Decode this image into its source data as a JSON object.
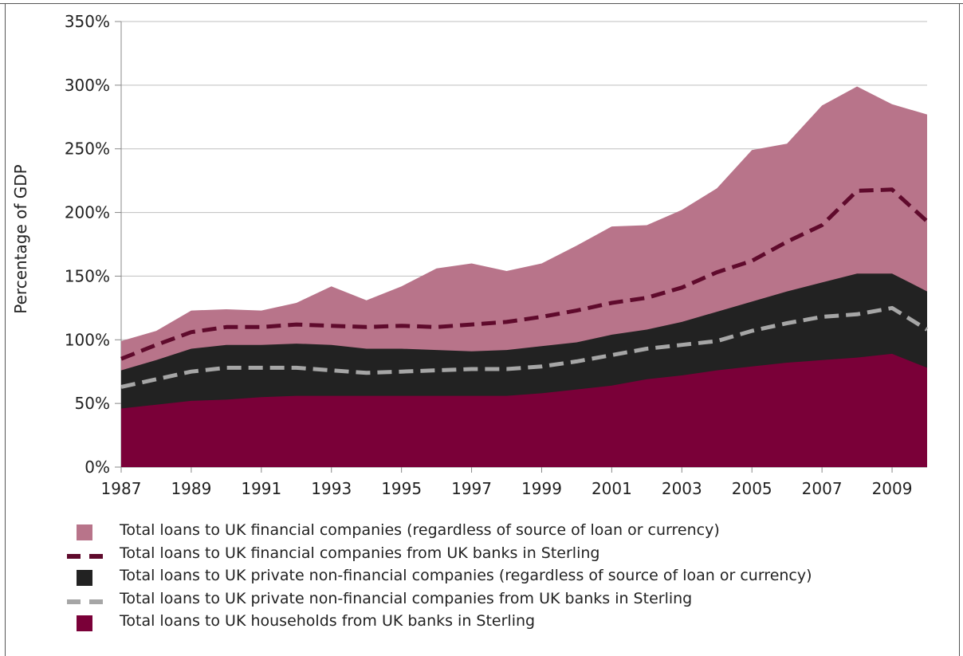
{
  "colors": {
    "financial_total": "#b8748a",
    "financial_sterling": "#5f0a2c",
    "nonfinancial_total": "#222222",
    "nonfinancial_sterling": "#a6a6a6",
    "households": "#7a0038",
    "grid": "#bfbfbf"
  },
  "chart_data": {
    "type": "area",
    "ylabel": "Percentage of GDP",
    "ylim": [
      0,
      350
    ],
    "yticks": [
      "0%",
      "50%",
      "100%",
      "150%",
      "200%",
      "250%",
      "300%",
      "350%"
    ],
    "xlim": [
      1987,
      2010
    ],
    "xticks": [
      "1987",
      "1989",
      "1991",
      "1993",
      "1995",
      "1997",
      "1999",
      "2001",
      "2003",
      "2005",
      "2007",
      "2009"
    ],
    "grid": true,
    "legend_position": "bottom",
    "x": [
      1987,
      1988,
      1989,
      1990,
      1991,
      1992,
      1993,
      1994,
      1995,
      1996,
      1997,
      1998,
      1999,
      2000,
      2001,
      2002,
      2003,
      2004,
      2005,
      2006,
      2007,
      2008,
      2009,
      2010
    ],
    "series": [
      {
        "name": "Total loans to UK financial companies (regardless of source of loan or currency)",
        "kind": "area",
        "values": [
          99,
          107,
          123,
          124,
          123,
          129,
          142,
          131,
          142,
          156,
          160,
          154,
          160,
          174,
          189,
          190,
          202,
          219,
          249,
          254,
          284,
          299,
          285,
          277
        ]
      },
      {
        "name": "Total loans to UK financial companies from UK banks in Sterling",
        "kind": "dashed-line",
        "values": [
          85,
          96,
          106,
          110,
          110,
          112,
          111,
          110,
          111,
          110,
          112,
          114,
          118,
          123,
          129,
          133,
          141,
          153,
          162,
          177,
          190,
          217,
          218,
          193
        ]
      },
      {
        "name": "Total loans to UK private non-financial companies (regardless of source of loan or currency)",
        "kind": "area",
        "values": [
          76,
          84,
          93,
          96,
          96,
          97,
          96,
          93,
          93,
          92,
          91,
          92,
          95,
          98,
          104,
          108,
          114,
          122,
          130,
          138,
          145,
          152,
          152,
          138
        ]
      },
      {
        "name": "Total loans to UK private non-financial companies from UK banks in Sterling",
        "kind": "dashed-line",
        "values": [
          63,
          69,
          75,
          78,
          78,
          78,
          76,
          74,
          75,
          76,
          77,
          77,
          79,
          83,
          88,
          93,
          96,
          99,
          107,
          113,
          118,
          120,
          125,
          108
        ]
      },
      {
        "name": "Total loans to UK households from UK banks in Sterling",
        "kind": "area",
        "values": [
          46,
          49,
          52,
          53,
          55,
          56,
          56,
          56,
          56,
          56,
          56,
          56,
          58,
          61,
          64,
          69,
          72,
          76,
          79,
          82,
          84,
          86,
          89,
          78
        ]
      }
    ]
  }
}
